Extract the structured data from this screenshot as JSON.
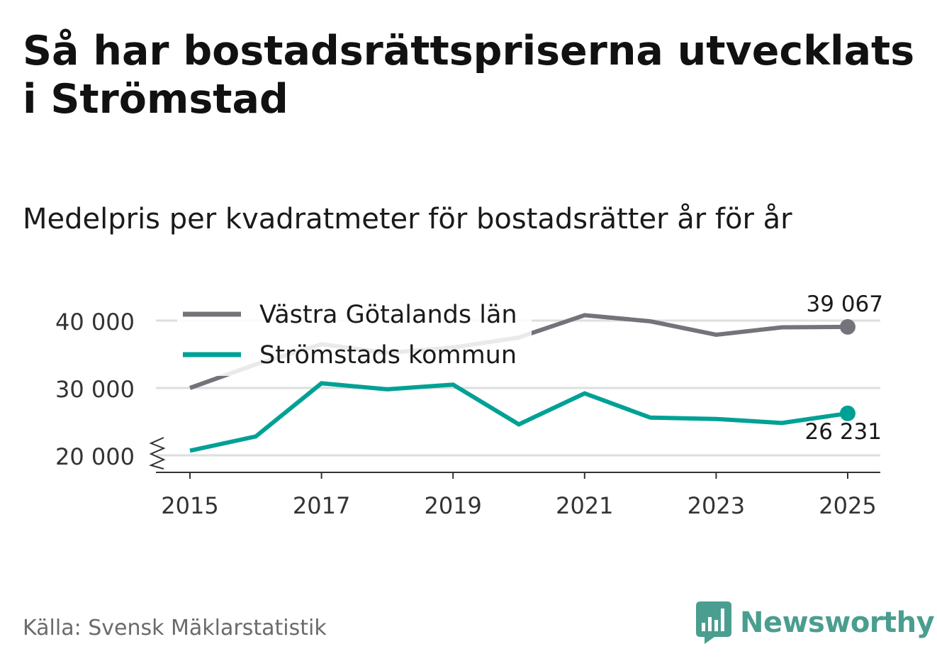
{
  "title": "Så har bostadsrättspriserna utvecklats i Strömstad",
  "subtitle": "Medelpris per kvadratmeter för bostadsrätter år för år",
  "source": "Källa: Svensk Mäklarstatistik",
  "brand": {
    "name": "Newsworthy",
    "logo_icon": "bar-chart-icon",
    "color": "#4a9e8f"
  },
  "chart_data": {
    "type": "line",
    "title": "Medelpris per kvadratmeter för bostadsrätter år för år",
    "xlabel": "",
    "ylabel": "",
    "x": [
      2015,
      2016,
      2017,
      2018,
      2019,
      2020,
      2021,
      2022,
      2023,
      2024,
      2025
    ],
    "xticks": [
      "2015",
      "2017",
      "2019",
      "2021",
      "2023",
      "2025"
    ],
    "yticks": [
      "20 000",
      "30 000",
      "40 000"
    ],
    "ylim": [
      18000,
      42000
    ],
    "grid": true,
    "legend_position": "top-left",
    "series": [
      {
        "name": "Västra Götalands län",
        "color": "#74737a",
        "values": [
          30000,
          33500,
          36500,
          35200,
          36000,
          37500,
          40800,
          39900,
          37900,
          39000,
          39067
        ],
        "end_label": "39 067"
      },
      {
        "name": "Strömstads kommun",
        "color": "#00a195",
        "values": [
          20700,
          22800,
          30700,
          29800,
          30500,
          24600,
          29200,
          25600,
          25400,
          24800,
          26231
        ],
        "end_label": "26 231"
      }
    ]
  }
}
